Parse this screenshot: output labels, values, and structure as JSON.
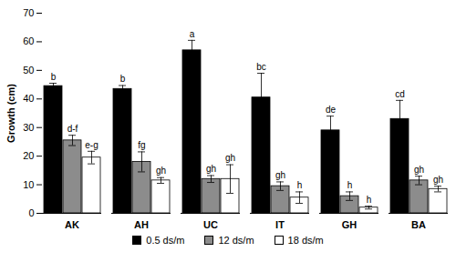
{
  "chart_data": {
    "type": "bar",
    "y_label": "Growth (cm)",
    "categories": [
      "AK",
      "AH",
      "UC",
      "IT",
      "GH",
      "BA"
    ],
    "series": [
      {
        "name": "0.5 ds/m",
        "color": "#000000",
        "values": [
          44.5,
          43.5,
          57,
          40.5,
          29,
          33
        ],
        "errors": [
          1,
          1.2,
          3.5,
          8.5,
          5,
          6.5
        ],
        "letters": [
          "b",
          "b",
          "a",
          "bc",
          "de",
          "cd"
        ]
      },
      {
        "name": "12 ds/m",
        "color": "#8c8c8c",
        "values": [
          25.5,
          18,
          12,
          9.5,
          6,
          11.5
        ],
        "errors": [
          1.8,
          3.5,
          1.2,
          1.5,
          1.5,
          1.5
        ],
        "letters": [
          "d-f",
          "fg",
          "gh",
          "gh",
          "h",
          "gh"
        ]
      },
      {
        "name": "18 ds/m",
        "color": "#ffffff",
        "values": [
          19.5,
          11.5,
          12,
          5.5,
          2,
          8.5
        ],
        "errors": [
          2.2,
          1,
          5,
          2,
          0.5,
          1
        ],
        "letters": [
          "e-g",
          "gh",
          "gh",
          "h",
          "h",
          "gh"
        ]
      }
    ],
    "ylim": [
      0,
      70
    ],
    "yticks": [
      0,
      10,
      20,
      30,
      40,
      50,
      60,
      70
    ],
    "legend": "bottom",
    "grid": false
  }
}
